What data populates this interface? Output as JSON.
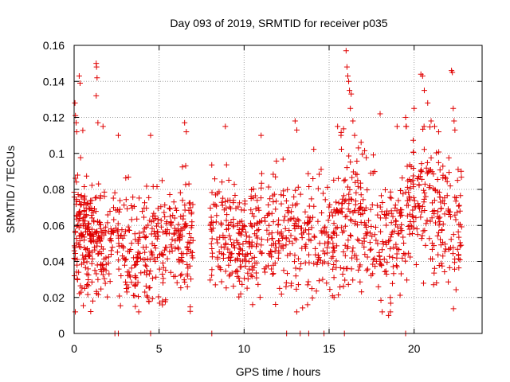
{
  "chart_data": {
    "type": "scatter",
    "title": "Day 093 of 2019, SRMTID for receiver p035",
    "xlabel": "GPS time / hours",
    "ylabel": "SRMTID / TECUs",
    "xlim": [
      0,
      24
    ],
    "ylim": [
      0,
      0.16
    ],
    "xticks": [
      0,
      5,
      10,
      15,
      20
    ],
    "xtick_labels": [
      "0",
      "5",
      "10",
      "15",
      "20"
    ],
    "yticks": [
      0,
      0.02,
      0.04,
      0.06,
      0.08,
      0.1,
      0.12,
      0.14,
      0.16
    ],
    "ytick_labels": [
      "0",
      "0.02",
      "0.04",
      "0.06",
      "0.08",
      "0.1",
      "0.12",
      "0.14",
      "0.16"
    ],
    "grid": true,
    "marker": "plus",
    "color": "#e00000",
    "zero_points_x": [
      2.4,
      2.6,
      4.5,
      8.1,
      12.5,
      13.3,
      13.8,
      14.7,
      15.9,
      19.5
    ],
    "segments": [
      {
        "x": [
          0.0,
          1.0
        ],
        "center": 0.055,
        "spread": 0.018,
        "n": 140
      },
      {
        "x": [
          1.0,
          2.0
        ],
        "center": 0.052,
        "spread": 0.017,
        "n": 90
      },
      {
        "x": [
          2.0,
          3.3
        ],
        "center": 0.05,
        "spread": 0.016,
        "n": 75
      },
      {
        "x": [
          3.3,
          4.5
        ],
        "center": 0.048,
        "spread": 0.016,
        "n": 80
      },
      {
        "x": [
          4.5,
          6.0
        ],
        "center": 0.052,
        "spread": 0.015,
        "n": 95
      },
      {
        "x": [
          6.0,
          7.0
        ],
        "center": 0.055,
        "spread": 0.018,
        "n": 80
      },
      {
        "x": [
          8.0,
          9.3
        ],
        "center": 0.055,
        "spread": 0.017,
        "n": 90
      },
      {
        "x": [
          9.3,
          10.4
        ],
        "center": 0.05,
        "spread": 0.016,
        "n": 80
      },
      {
        "x": [
          10.4,
          12.3
        ],
        "center": 0.055,
        "spread": 0.016,
        "n": 120
      },
      {
        "x": [
          12.3,
          13.9
        ],
        "center": 0.05,
        "spread": 0.017,
        "n": 90
      },
      {
        "x": [
          13.9,
          15.5
        ],
        "center": 0.055,
        "spread": 0.017,
        "n": 90
      },
      {
        "x": [
          15.5,
          17.2
        ],
        "center": 0.065,
        "spread": 0.02,
        "n": 120
      },
      {
        "x": [
          17.2,
          19.5
        ],
        "center": 0.055,
        "spread": 0.017,
        "n": 130
      },
      {
        "x": [
          19.5,
          21.0
        ],
        "center": 0.075,
        "spread": 0.02,
        "n": 100
      },
      {
        "x": [
          21.0,
          22.8
        ],
        "center": 0.065,
        "spread": 0.02,
        "n": 120
      }
    ],
    "outliers": [
      {
        "x": 0.05,
        "y": 0.128
      },
      {
        "x": 0.08,
        "y": 0.121
      },
      {
        "x": 0.12,
        "y": 0.117
      },
      {
        "x": 0.15,
        "y": 0.112
      },
      {
        "x": 0.3,
        "y": 0.143
      },
      {
        "x": 0.35,
        "y": 0.139
      },
      {
        "x": 1.3,
        "y": 0.15
      },
      {
        "x": 1.32,
        "y": 0.148
      },
      {
        "x": 1.35,
        "y": 0.142
      },
      {
        "x": 1.3,
        "y": 0.132
      },
      {
        "x": 1.4,
        "y": 0.117
      },
      {
        "x": 1.7,
        "y": 0.115
      },
      {
        "x": 2.6,
        "y": 0.11
      },
      {
        "x": 4.5,
        "y": 0.11
      },
      {
        "x": 6.5,
        "y": 0.117
      },
      {
        "x": 6.6,
        "y": 0.112
      },
      {
        "x": 11.0,
        "y": 0.11
      },
      {
        "x": 13.0,
        "y": 0.118
      },
      {
        "x": 13.1,
        "y": 0.113
      },
      {
        "x": 15.5,
        "y": 0.115
      },
      {
        "x": 15.7,
        "y": 0.11
      },
      {
        "x": 16.0,
        "y": 0.157
      },
      {
        "x": 16.05,
        "y": 0.148
      },
      {
        "x": 16.1,
        "y": 0.143
      },
      {
        "x": 16.15,
        "y": 0.14
      },
      {
        "x": 16.2,
        "y": 0.135
      },
      {
        "x": 16.3,
        "y": 0.133
      },
      {
        "x": 16.25,
        "y": 0.125
      },
      {
        "x": 16.4,
        "y": 0.118
      },
      {
        "x": 16.5,
        "y": 0.11
      },
      {
        "x": 18.0,
        "y": 0.122
      },
      {
        "x": 18.5,
        "y": 0.01
      },
      {
        "x": 18.6,
        "y": 0.02
      },
      {
        "x": 19.0,
        "y": 0.115
      },
      {
        "x": 19.5,
        "y": 0.12
      },
      {
        "x": 20.0,
        "y": 0.125
      },
      {
        "x": 20.4,
        "y": 0.144
      },
      {
        "x": 20.5,
        "y": 0.143
      },
      {
        "x": 20.6,
        "y": 0.135
      },
      {
        "x": 20.8,
        "y": 0.128
      },
      {
        "x": 21.0,
        "y": 0.118
      },
      {
        "x": 22.2,
        "y": 0.146
      },
      {
        "x": 22.25,
        "y": 0.145
      },
      {
        "x": 22.3,
        "y": 0.125
      },
      {
        "x": 22.35,
        "y": 0.118
      },
      {
        "x": 22.4,
        "y": 0.113
      },
      {
        "x": 3.6,
        "y": 0.015
      },
      {
        "x": 3.8,
        "y": 0.012
      },
      {
        "x": 1.1,
        "y": 0.018
      },
      {
        "x": 5.2,
        "y": 0.018
      },
      {
        "x": 9.8,
        "y": 0.022
      },
      {
        "x": 10.5,
        "y": 0.016
      }
    ]
  }
}
